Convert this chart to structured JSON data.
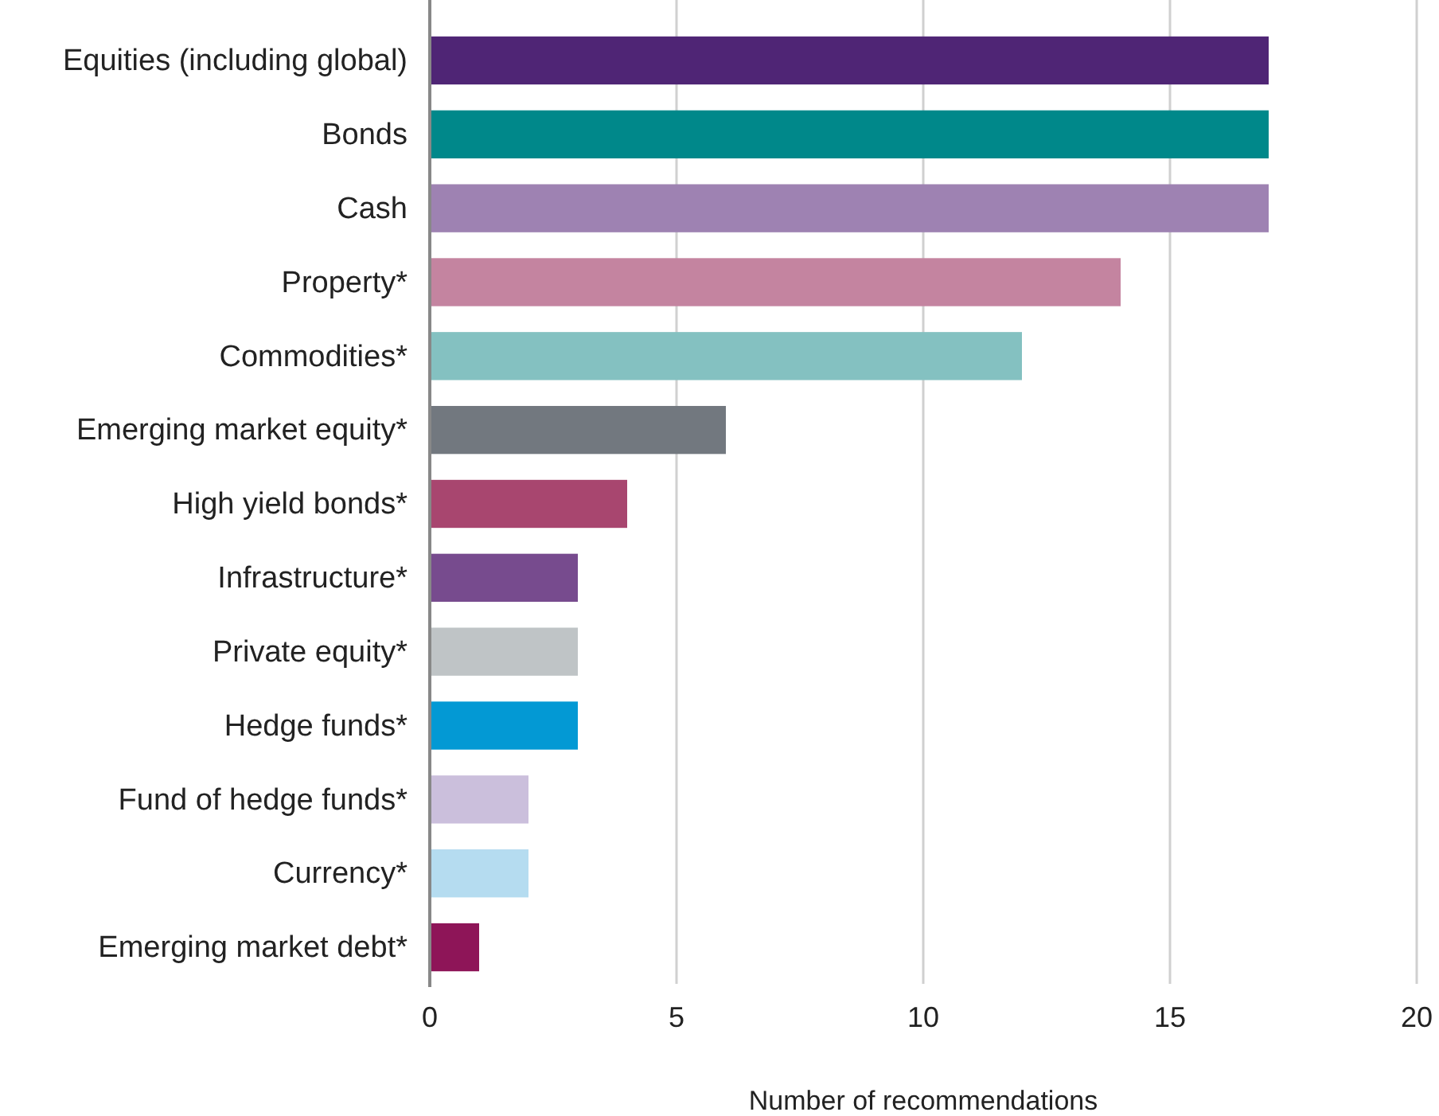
{
  "chart_data": {
    "type": "bar",
    "orientation": "horizontal",
    "categories": [
      "Equities (including global)",
      "Bonds",
      "Cash",
      "Property*",
      "Commodities*",
      "Emerging market equity*",
      "High yield bonds*",
      "Infrastructure*",
      "Private equity*",
      "Hedge funds*",
      "Fund of hedge funds*",
      "Currency*",
      "Emerging market debt*"
    ],
    "values": [
      17,
      17,
      17,
      14,
      12,
      6,
      4,
      3,
      3,
      3,
      2,
      2,
      1
    ],
    "colors": [
      "#4f2575",
      "#00888a",
      "#9e82b2",
      "#c484a0",
      "#84c1c1",
      "#72787f",
      "#a8466f",
      "#774b8e",
      "#bfc4c6",
      "#0399d4",
      "#cbbfdc",
      "#b5dcf0",
      "#8e1558"
    ],
    "xlim": [
      0,
      20
    ],
    "xticks": [
      0,
      5,
      10,
      15,
      20
    ],
    "grid": "x",
    "xlabel": "Number of recommendations"
  }
}
